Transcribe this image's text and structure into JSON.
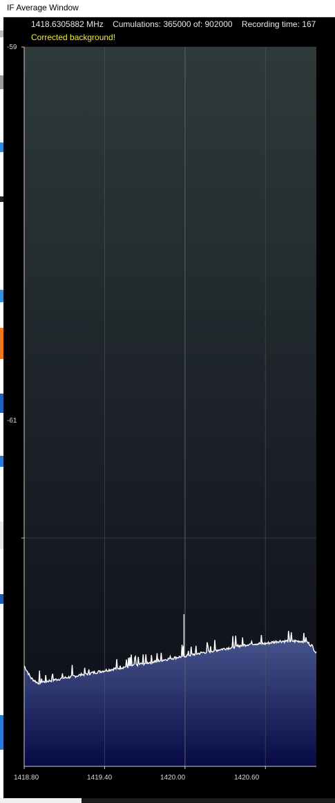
{
  "window": {
    "title": "IF Average Window"
  },
  "status": {
    "frequency": "1418.6305882 MHz",
    "cumulations": "Cumulations: 365000 of: 902000",
    "recording_time": "Recording time: 167"
  },
  "notice": {
    "text": "Corrected background!",
    "color": "#f0ec3c"
  },
  "chart_data": {
    "type": "area",
    "title": "",
    "xlabel": "",
    "ylabel": "",
    "xlim": [
      1418.8,
      1420.98
    ],
    "ylim": [
      -61.93,
      -59
    ],
    "x_ticks": [
      "1418.80",
      "1419.40",
      "1420.00",
      "1420.60"
    ],
    "x_tick_values": [
      1418.8,
      1419.4,
      1420.0,
      1420.6
    ],
    "y_ticks": [
      "-59",
      "-61"
    ],
    "y_tick_values": [
      -59,
      -61
    ],
    "grid": true,
    "series": [
      {
        "x": [
          1418.8,
          1418.85,
          1418.9,
          1419.0,
          1419.1,
          1419.2,
          1419.3,
          1419.4,
          1419.5,
          1419.6,
          1419.7,
          1419.8,
          1419.9,
          1420.0,
          1420.1,
          1420.2,
          1420.3,
          1420.4,
          1420.5,
          1420.6,
          1420.7,
          1420.8,
          1420.9,
          1420.95,
          1420.98
        ],
        "y": [
          -61.52,
          -61.57,
          -61.59,
          -61.58,
          -61.57,
          -61.56,
          -61.55,
          -61.54,
          -61.53,
          -61.52,
          -61.51,
          -61.5,
          -61.49,
          -61.48,
          -61.47,
          -61.46,
          -61.45,
          -61.44,
          -61.43,
          -61.43,
          -61.42,
          -61.42,
          -61.42,
          -61.44,
          -61.47
        ],
        "color": "#ffffff",
        "fill_top": "#4a5890",
        "fill_bottom": "#070a44"
      }
    ],
    "spike": {
      "x": 1420.0,
      "y": -61.31
    },
    "colors": {
      "plot_bg_top": "#2e3a3a",
      "plot_bg_bottom": "#0c0c18",
      "grid": "#5a6266",
      "axis": "#cfcfcf"
    }
  }
}
